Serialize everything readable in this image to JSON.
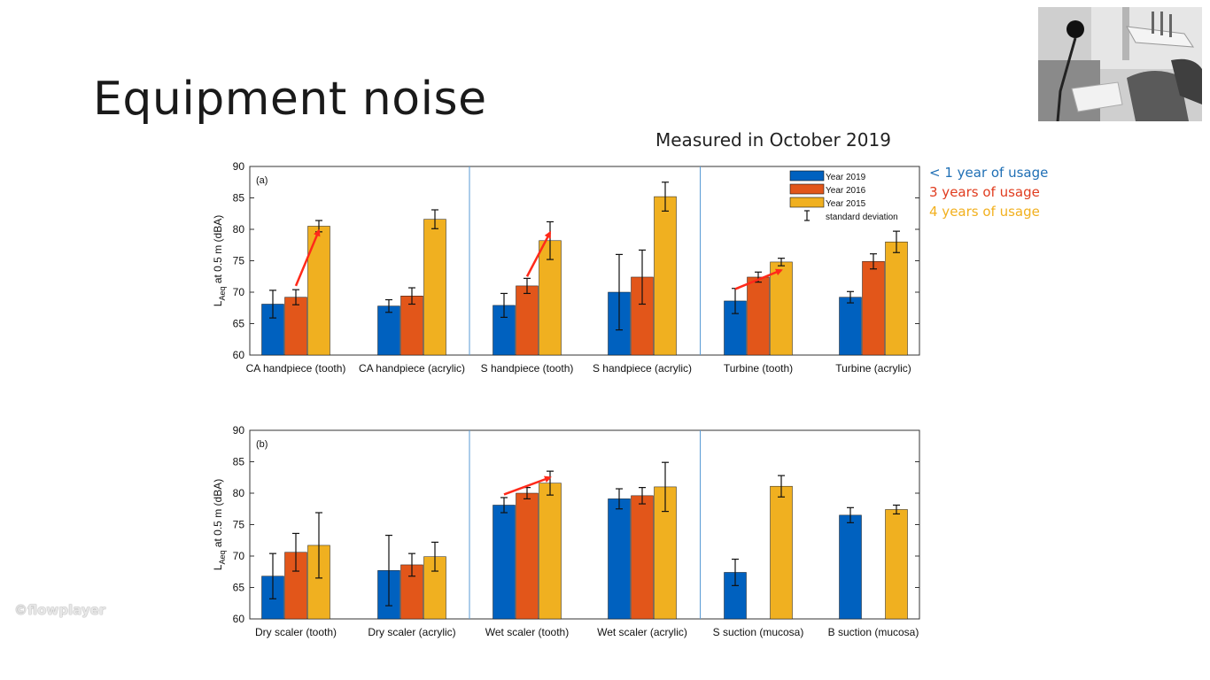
{
  "slide": {
    "title": "Equipment noise",
    "subtitle": "Measured in October 2019",
    "usage_labels": [
      {
        "text": "< 1 year of usage",
        "color": "#1f6fb5"
      },
      {
        "text": "3 years of usage",
        "color": "#e03c1f"
      },
      {
        "text": "4 years of usage",
        "color": "#f2b01e"
      }
    ],
    "watermark": "flowplayer",
    "photo_icon": "dental-chair-photo"
  },
  "colors": {
    "y2019": "#0061bf",
    "y2016": "#e2561a",
    "y2015": "#f0b020",
    "arrow": "#ff2a1a",
    "divider": "#5a9bd5"
  },
  "chart_data": [
    {
      "type": "bar",
      "panel_label": "(a)",
      "ylabel": "L_Aeq at 0.5 m (dBA)",
      "ylabel_main": "L",
      "ylabel_sub": "Aeq",
      "ylabel_rest": " at 0.5 m (dBA)",
      "ylim": [
        60,
        90
      ],
      "yticks": [
        60,
        65,
        70,
        75,
        80,
        85,
        90
      ],
      "categories": [
        "CA handpiece (tooth)",
        "CA handpiece (acrylic)",
        "S handpiece (tooth)",
        "S handpiece (acrylic)",
        "Turbine (tooth)",
        "Turbine (acrylic)"
      ],
      "series": [
        {
          "name": "Year 2019",
          "values": [
            68.1,
            67.8,
            67.9,
            70.0,
            68.6,
            69.2
          ],
          "errors": [
            2.2,
            1.0,
            1.9,
            6.0,
            2.0,
            0.9
          ]
        },
        {
          "name": "Year 2016",
          "values": [
            69.2,
            69.4,
            71.0,
            72.4,
            72.4,
            74.9
          ],
          "errors": [
            1.2,
            1.3,
            1.2,
            4.3,
            0.8,
            1.2
          ]
        },
        {
          "name": "Year 2015",
          "values": [
            80.5,
            81.6,
            78.2,
            85.2,
            74.8,
            78.0
          ],
          "errors": [
            0.9,
            1.5,
            3.0,
            2.3,
            0.6,
            1.7
          ]
        }
      ],
      "legend": {
        "placement": "top-right",
        "entries": [
          "Year 2019",
          "Year 2016",
          "Year 2015"
        ],
        "errorbar_label": "standard deviation"
      },
      "dividers_after_category": [
        1,
        3
      ],
      "arrows": [
        {
          "from_category": 0,
          "from_value": 71.0,
          "to_category": 0,
          "to_value": 79.8,
          "from_series": 1,
          "to_series": 2
        },
        {
          "from_category": 2,
          "from_value": 72.5,
          "to_category": 2,
          "to_value": 79.5,
          "from_series": 1,
          "to_series": 2
        },
        {
          "from_category": 4,
          "from_value": 70.5,
          "to_category": 4,
          "to_value": 73.5,
          "from_series": 0,
          "to_series": 2
        }
      ]
    },
    {
      "type": "bar",
      "panel_label": "(b)",
      "ylabel": "L_Aeq at 0.5 m (dBA)",
      "ylabel_main": "L",
      "ylabel_sub": "Aeq",
      "ylabel_rest": " at 0.5 m (dBA)",
      "ylim": [
        60,
        90
      ],
      "yticks": [
        60,
        65,
        70,
        75,
        80,
        85,
        90
      ],
      "categories": [
        "Dry scaler (tooth)",
        "Dry scaler (acrylic)",
        "Wet scaler (tooth)",
        "Wet scaler (acrylic)",
        "S suction (mucosa)",
        "B suction (mucosa)"
      ],
      "series": [
        {
          "name": "Year 2019",
          "values": [
            66.8,
            67.7,
            78.1,
            79.1,
            67.4,
            76.5
          ],
          "errors": [
            3.6,
            5.6,
            1.2,
            1.6,
            2.1,
            1.2
          ]
        },
        {
          "name": "Year 2016",
          "values": [
            70.6,
            68.6,
            80.0,
            79.6,
            null,
            null
          ],
          "errors": [
            3.0,
            1.8,
            0.9,
            1.3,
            null,
            null
          ]
        },
        {
          "name": "Year 2015",
          "values": [
            71.7,
            69.9,
            81.6,
            81.0,
            81.1,
            77.4
          ],
          "errors": [
            5.2,
            2.3,
            1.9,
            3.9,
            1.7,
            0.7
          ]
        }
      ],
      "dividers_after_category": [
        1,
        3
      ],
      "arrows": [
        {
          "from_category": 2,
          "from_value": 79.8,
          "to_category": 2,
          "to_value": 82.5,
          "from_series": 0,
          "to_series": 2
        }
      ]
    }
  ]
}
